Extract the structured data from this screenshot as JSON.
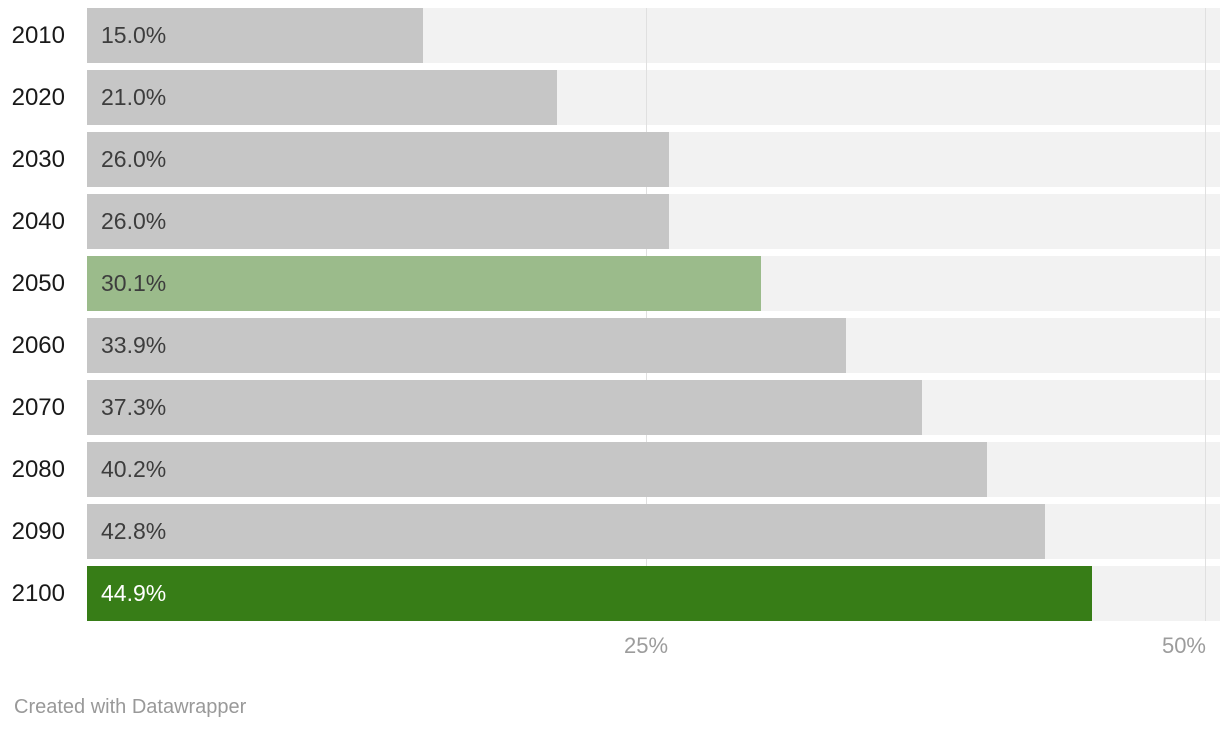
{
  "chart_data": {
    "type": "bar",
    "orientation": "horizontal",
    "title": "",
    "xlabel": "",
    "ylabel": "",
    "xlim": [
      0,
      50
    ],
    "grid": true,
    "x_tick_labels": [
      "25%",
      "50%"
    ],
    "x_tick_values": [
      25,
      50
    ],
    "categories": [
      "2010",
      "2020",
      "2030",
      "2040",
      "2050",
      "2060",
      "2070",
      "2080",
      "2090",
      "2100"
    ],
    "values": [
      15.0,
      21.0,
      26.0,
      26.0,
      30.1,
      33.9,
      37.3,
      40.2,
      42.8,
      44.9
    ],
    "rows": [
      {
        "year": "2010",
        "value": 15.0,
        "label": "15.0%",
        "bar_color": "#c6c6c6",
        "label_color": "#3d3d3d"
      },
      {
        "year": "2020",
        "value": 21.0,
        "label": "21.0%",
        "bar_color": "#c6c6c6",
        "label_color": "#3d3d3d"
      },
      {
        "year": "2030",
        "value": 26.0,
        "label": "26.0%",
        "bar_color": "#c6c6c6",
        "label_color": "#3d3d3d"
      },
      {
        "year": "2040",
        "value": 26.0,
        "label": "26.0%",
        "bar_color": "#c6c6c6",
        "label_color": "#3d3d3d"
      },
      {
        "year": "2050",
        "value": 30.1,
        "label": "30.1%",
        "bar_color": "#9bbb8b",
        "label_color": "#3d3d3d"
      },
      {
        "year": "2060",
        "value": 33.9,
        "label": "33.9%",
        "bar_color": "#c6c6c6",
        "label_color": "#3d3d3d"
      },
      {
        "year": "2070",
        "value": 37.3,
        "label": "37.3%",
        "bar_color": "#c6c6c6",
        "label_color": "#3d3d3d"
      },
      {
        "year": "2080",
        "value": 40.2,
        "label": "40.2%",
        "bar_color": "#c6c6c6",
        "label_color": "#3d3d3d"
      },
      {
        "year": "2090",
        "value": 42.8,
        "label": "42.8%",
        "bar_color": "#c6c6c6",
        "label_color": "#3d3d3d"
      },
      {
        "year": "2100",
        "value": 44.9,
        "label": "44.9%",
        "bar_color": "#377d17",
        "label_color": "#ffffff"
      }
    ],
    "colors": {
      "bar_default": "#c6c6c6",
      "bar_highlight_mid": "#9bbb8b",
      "bar_highlight_final": "#377d17",
      "track": "#f2f2f2",
      "gridline": "#e0e0e0",
      "axis_text": "#9c9c9c"
    },
    "legend": null
  },
  "footer": {
    "attribution": "Created with Datawrapper"
  }
}
